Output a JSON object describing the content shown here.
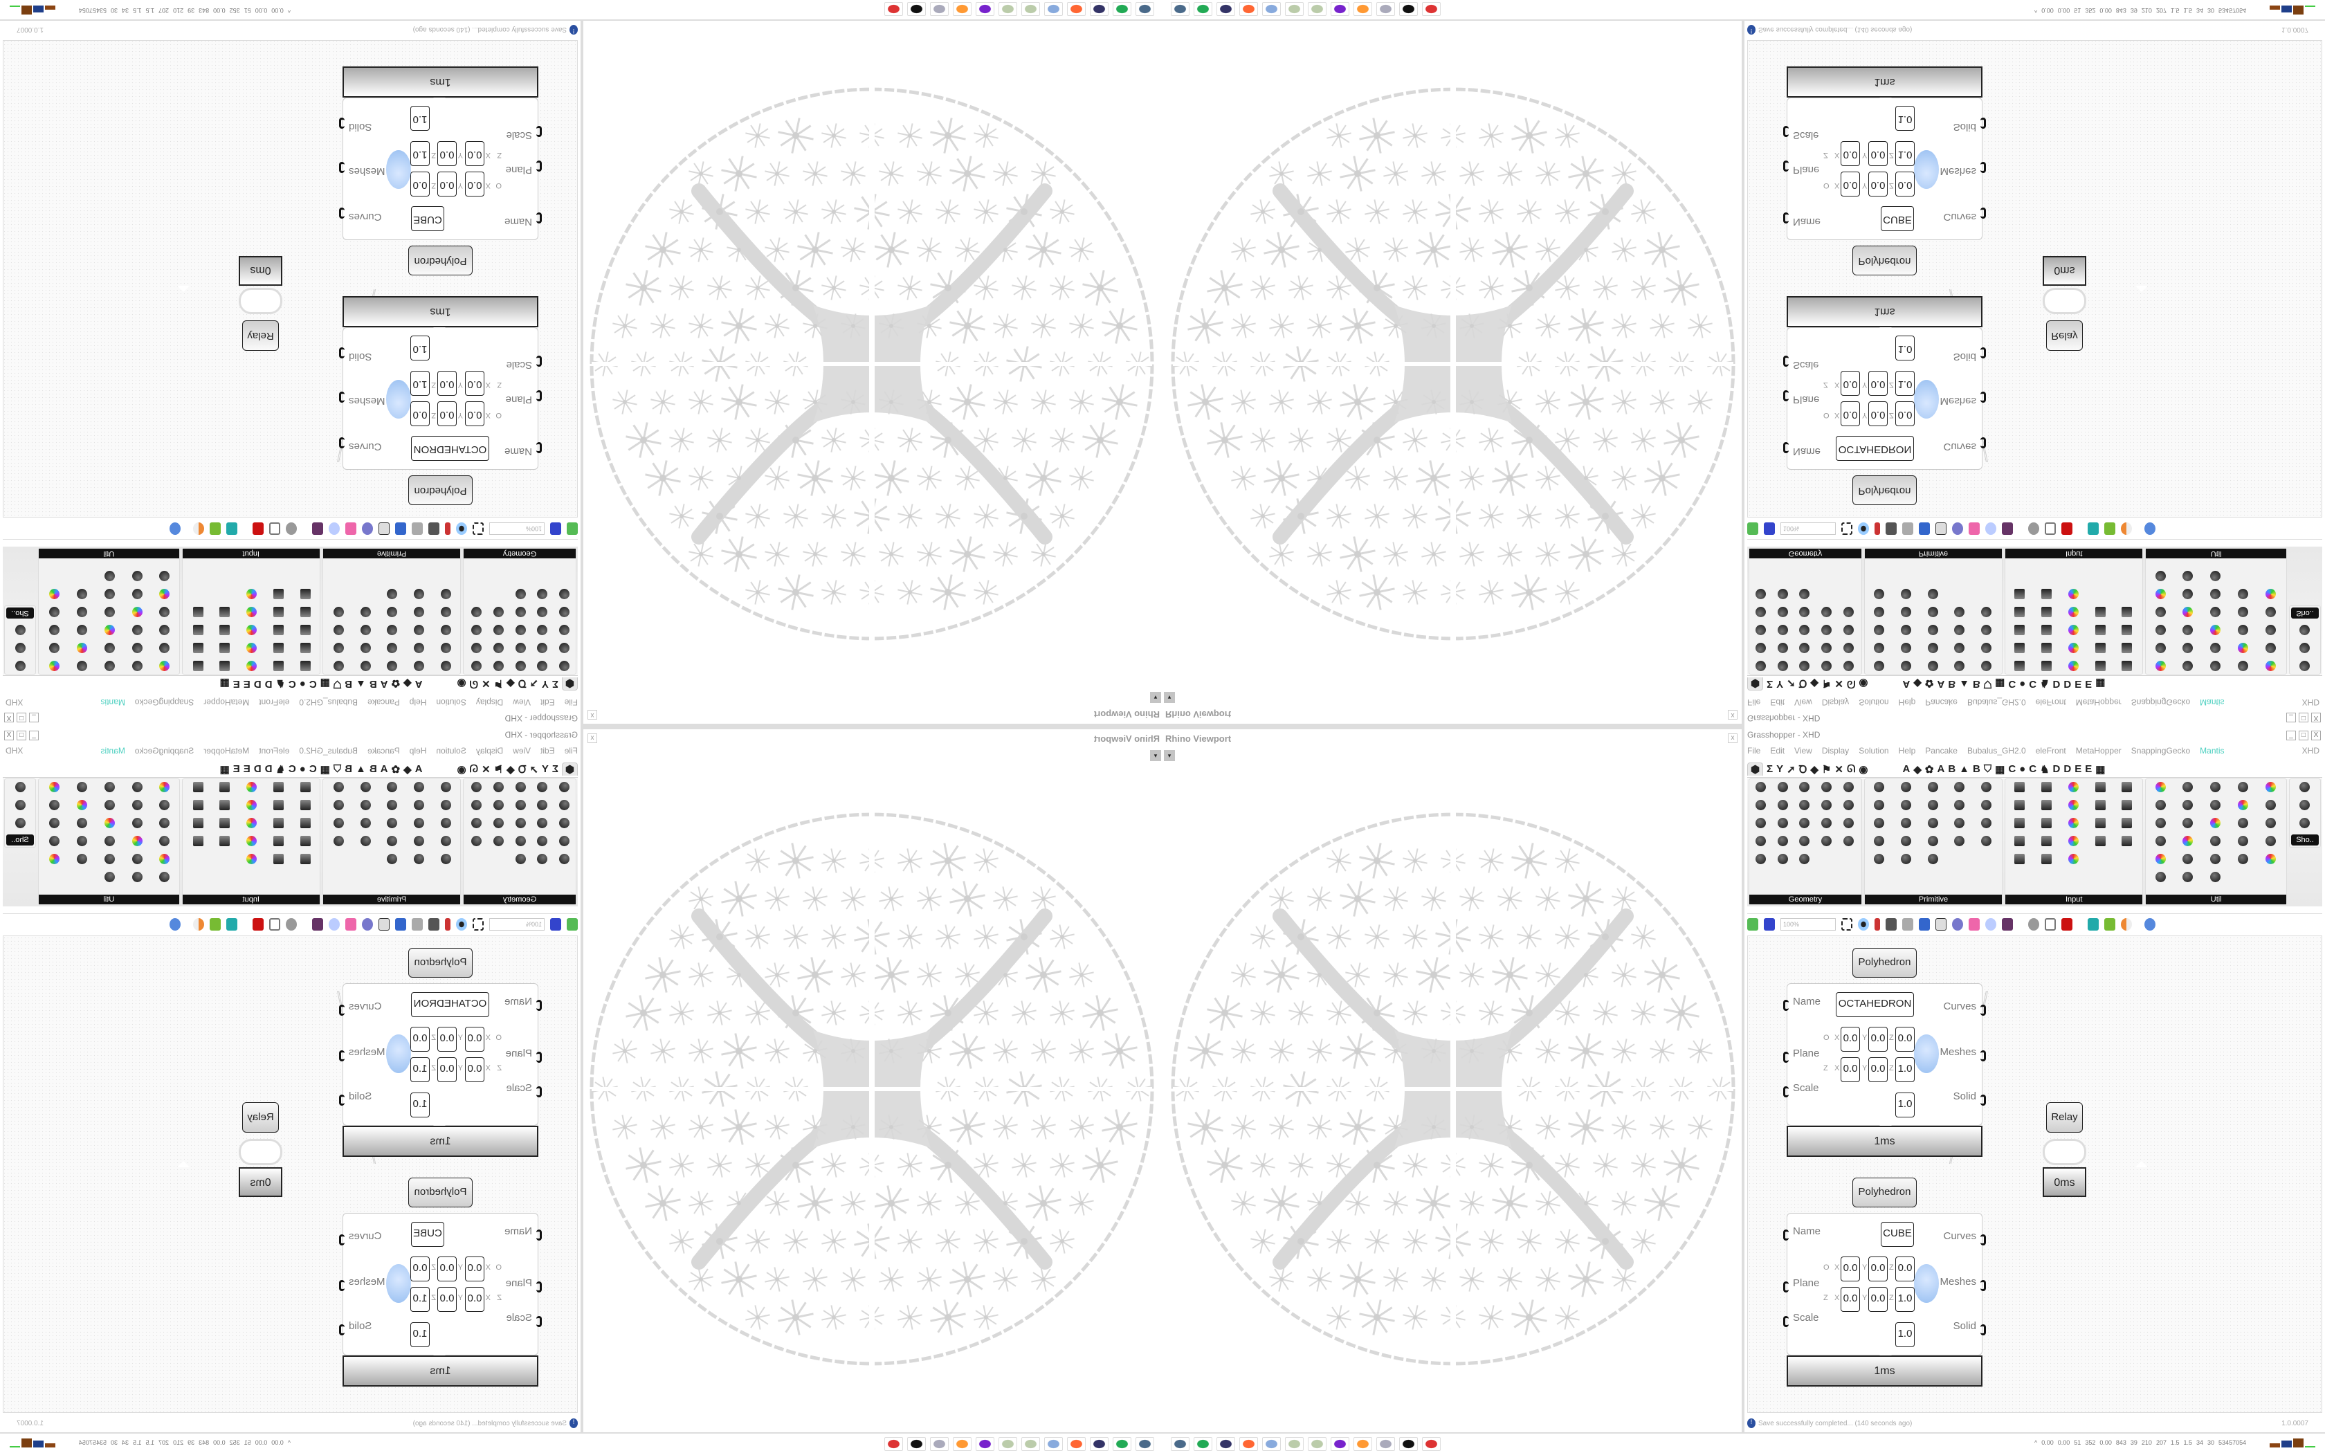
{
  "rhino": {
    "title": "Rhino Viewport",
    "close": "x",
    "dropdown": "▾"
  },
  "grasshopper": {
    "title": "Grasshopper - XHD",
    "window_buttons": [
      "_",
      "□",
      "X"
    ],
    "menu": [
      "File",
      "Edit",
      "View",
      "Display",
      "Solution",
      "Help",
      "Pancake",
      "Bubalus_GH2.0",
      "eleFront",
      "MetaHopper",
      "SnappingGecko",
      "Mantis"
    ],
    "menu_active": "Mantis",
    "menu_right": "XHD",
    "tab_symbols": [
      "⬢",
      "Σ",
      "Y",
      "➚",
      "Ꝺ",
      "◆",
      "⚑",
      "✕",
      "ᘏ",
      "◉"
    ],
    "tab_letters": [
      "A",
      "◆",
      "✿",
      "A",
      "B",
      "▲",
      "B",
      "⛉",
      "▦",
      "C",
      "●",
      "C",
      "♞",
      "D",
      "D",
      "E",
      "E",
      "▦"
    ],
    "panel_groups": [
      {
        "label": "Geometry",
        "count": 23
      },
      {
        "label": "Primitive",
        "count": 23
      },
      {
        "label": "Input",
        "count": 23
      },
      {
        "label": "Util",
        "count": 28
      },
      {
        "label": "Sho..",
        "count": 3
      }
    ],
    "zoom_value": "100%",
    "status_message": "Save successfully completed... (140 seconds ago)",
    "version": "1.0.0007"
  },
  "components": [
    {
      "title": "Polyhedron",
      "name_value": "OCTAHEDRON",
      "timing": "1ms",
      "inputs": [
        "Name",
        "Plane",
        "Scale"
      ],
      "outputs": [
        "Curves",
        "Meshes",
        "Solid"
      ],
      "origin": [
        "0.0",
        "0.0",
        "0.0"
      ],
      "zaxis": [
        "0.0",
        "0.0",
        "1.0"
      ],
      "scale": "1.0"
    },
    {
      "title": "Polyhedron",
      "name_value": "CUBE",
      "timing": "1ms",
      "inputs": [
        "Name",
        "Plane",
        "Scale"
      ],
      "outputs": [
        "Curves",
        "Meshes",
        "Solid"
      ],
      "origin": [
        "0.0",
        "0.0",
        "0.0"
      ],
      "zaxis": [
        "0.0",
        "0.0",
        "1.0"
      ],
      "scale": "1.0"
    }
  ],
  "plane_labels": {
    "o": "O",
    "z": "Z",
    "x": "X",
    "y": "Y",
    "zc": "Z"
  },
  "relay": {
    "title": "Relay",
    "timing": "0ms"
  },
  "taskbar": {
    "apps": [
      "remote-desktop",
      "terminal",
      "save-64",
      "firefox",
      "calculator",
      "paint",
      "paint",
      "messenger",
      "blender",
      "notes",
      "rhino",
      "bug-app"
    ],
    "stats": [
      "0.00",
      "0.00",
      "51",
      "352",
      "0.00",
      "843",
      "39",
      "210",
      "207",
      "1.5",
      "1.5",
      "34",
      "30",
      "53457054"
    ],
    "expand": "^"
  },
  "colors": {
    "accent_tab": "#4dd0c0",
    "canvas": "#fafafa",
    "geometry": "#d8d8d8"
  }
}
